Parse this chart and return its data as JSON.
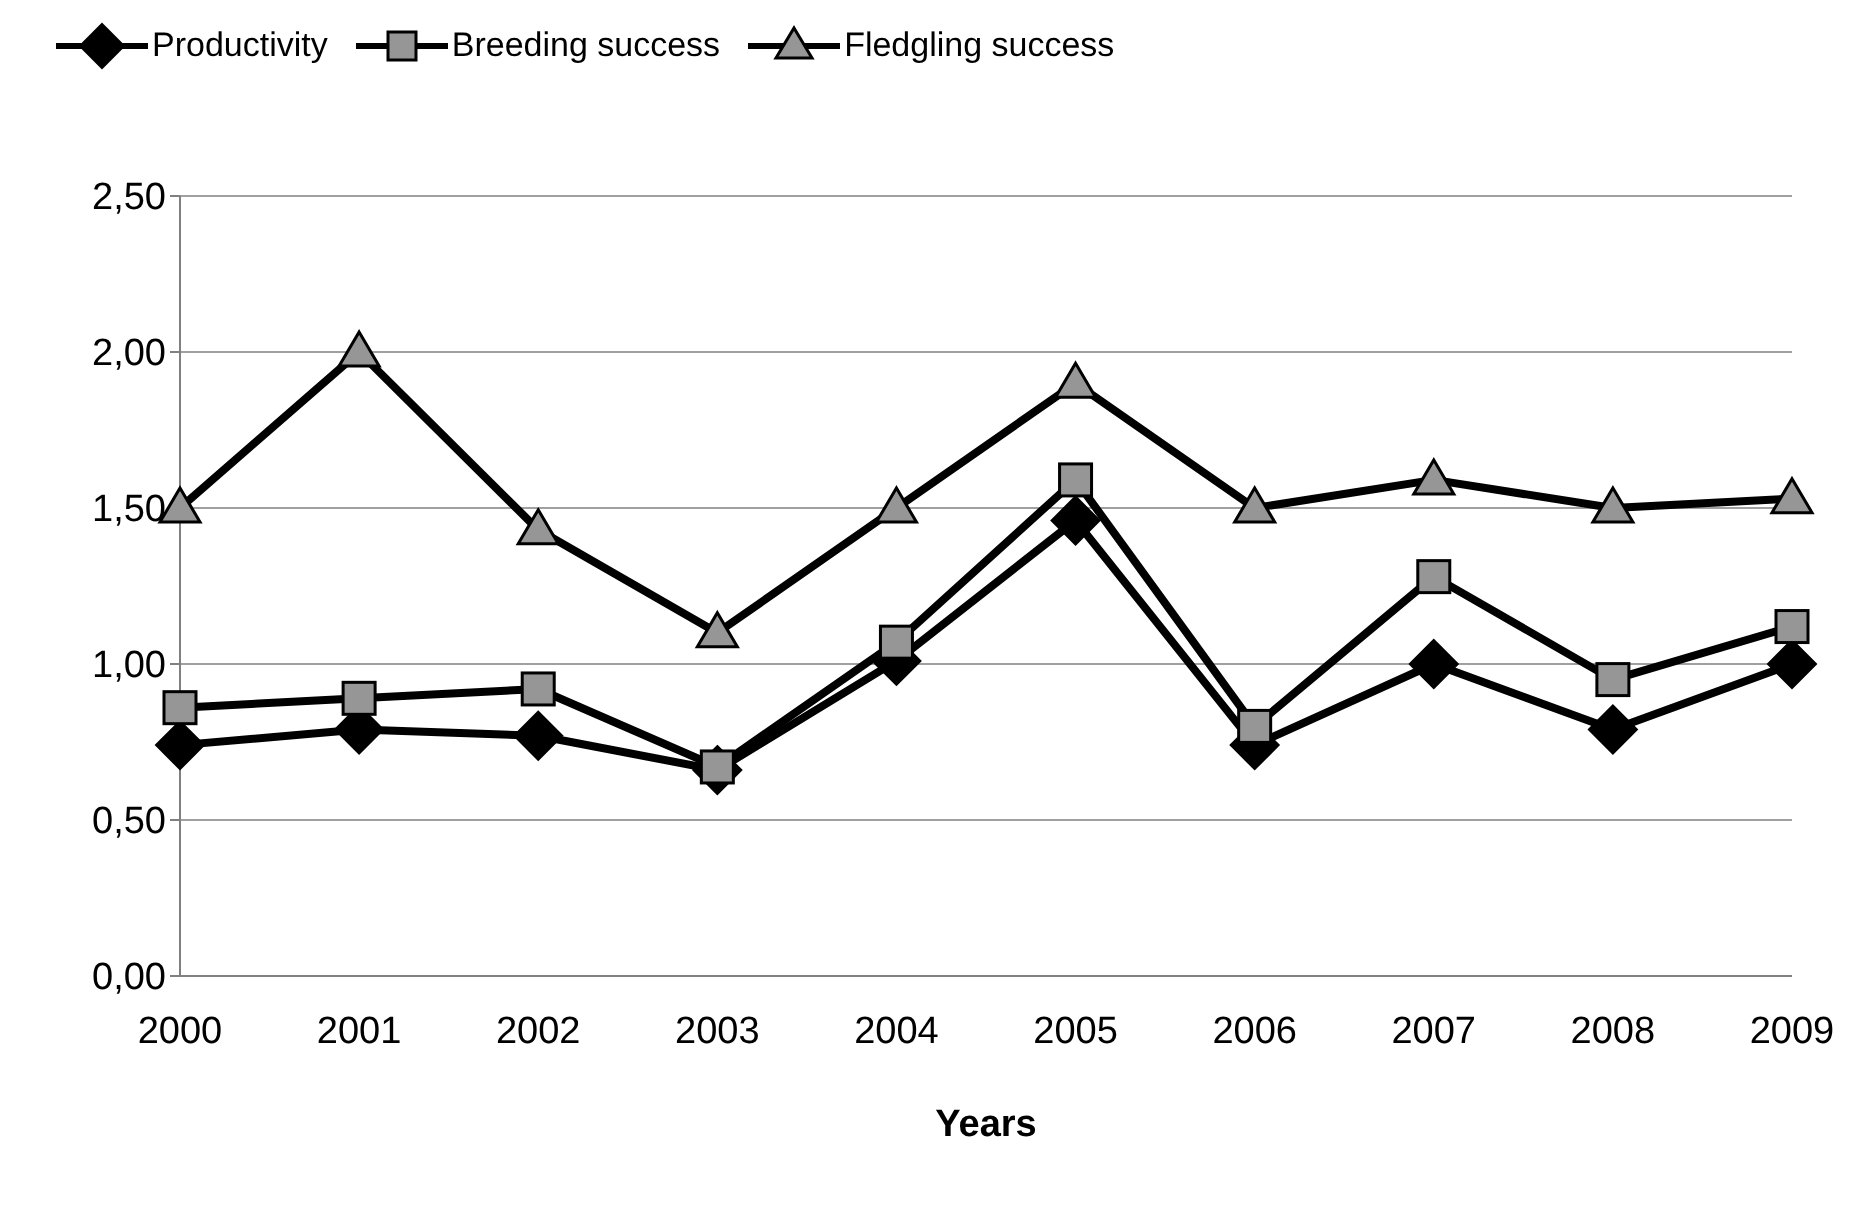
{
  "chart_data": {
    "type": "line",
    "xlabel": "Years",
    "categories": [
      "2000",
      "2001",
      "2002",
      "2003",
      "2004",
      "2005",
      "2006",
      "2007",
      "2008",
      "2009"
    ],
    "series": [
      {
        "name": "Productivity",
        "color": "#000000",
        "marker": "diamond",
        "values": [
          0.74,
          0.79,
          0.77,
          0.66,
          1.01,
          1.46,
          0.74,
          1.0,
          0.79,
          1.0
        ]
      },
      {
        "name": "Breeding success",
        "color": "#969696",
        "marker": "square",
        "values": [
          0.86,
          0.89,
          0.92,
          0.67,
          1.07,
          1.59,
          0.8,
          1.28,
          0.95,
          1.12
        ]
      },
      {
        "name": "Fledgling success",
        "color": "#969696",
        "marker": "triangle",
        "values": [
          1.5,
          2.0,
          1.43,
          1.1,
          1.5,
          1.9,
          1.5,
          1.59,
          1.5,
          1.53
        ]
      }
    ],
    "ylim": [
      0,
      2.5
    ],
    "yticks": [
      {
        "value": 0,
        "label": "0,00"
      },
      {
        "value": 0.5,
        "label": "0,50"
      },
      {
        "value": 1,
        "label": "1,00"
      },
      {
        "value": 1.5,
        "label": "1,50"
      },
      {
        "value": 2,
        "label": "2,00"
      },
      {
        "value": 2.5,
        "label": "2,50"
      }
    ],
    "grid": "y",
    "legend": "top",
    "line_style": "solid"
  }
}
